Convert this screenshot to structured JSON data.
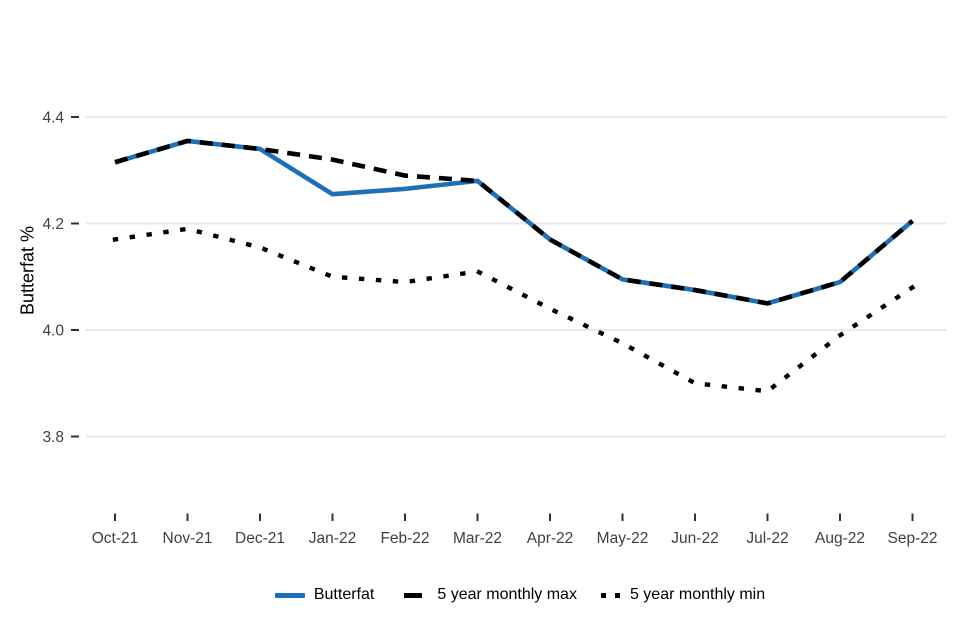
{
  "y_axis": {
    "title": "Butterfat %",
    "tick_labels": [
      "4.4",
      "4.2",
      "4.0",
      "3.8"
    ]
  },
  "x_axis": {
    "tick_labels": [
      "Oct-21",
      "Nov-21",
      "Dec-21",
      "Jan-22",
      "Feb-22",
      "Mar-22",
      "Apr-22",
      "May-22",
      "Jun-22",
      "Jul-22",
      "Aug-22",
      "Sep-22"
    ]
  },
  "legend": {
    "items": [
      {
        "label": "Butterfat",
        "style": "solid",
        "color": "#1d70b8"
      },
      {
        "label": "5 year monthly max",
        "style": "dashed",
        "color": "#000000"
      },
      {
        "label": "5 year monthly min",
        "style": "dotted",
        "color": "#000000"
      }
    ]
  },
  "colors": {
    "butterfat_blue": "#1d70b8",
    "black_line": "#000000",
    "gridline": "#e8e8e8",
    "tick_mark": "#333333",
    "axis_text": "#404040",
    "background": "#ffffff"
  },
  "chart_data": {
    "type": "line",
    "title": "",
    "xlabel": "",
    "ylabel": "Butterfat %",
    "categories": [
      "Oct-21",
      "Nov-21",
      "Dec-21",
      "Jan-22",
      "Feb-22",
      "Mar-22",
      "Apr-22",
      "May-22",
      "Jun-22",
      "Jul-22",
      "Aug-22",
      "Sep-22"
    ],
    "series": [
      {
        "name": "Butterfat",
        "color": "#1d70b8",
        "dash": "solid",
        "values": [
          4.315,
          4.355,
          4.34,
          4.255,
          4.265,
          4.28,
          4.17,
          4.095,
          4.075,
          4.05,
          4.09,
          4.205
        ]
      },
      {
        "name": "5 year monthly max",
        "color": "#000000",
        "dash": "dashed",
        "values": [
          4.315,
          4.355,
          4.34,
          4.32,
          4.29,
          4.28,
          4.17,
          4.095,
          4.075,
          4.05,
          4.09,
          4.205
        ]
      },
      {
        "name": "5 year monthly min",
        "color": "#000000",
        "dash": "dotted",
        "values": [
          4.17,
          4.19,
          4.155,
          4.1,
          4.09,
          4.11,
          4.04,
          3.975,
          3.9,
          3.885,
          3.99,
          4.08
        ]
      }
    ],
    "yticks": [
      4.4,
      4.2,
      4.0,
      3.8
    ],
    "ylim": [
      3.65,
      4.46
    ],
    "grid": "horizontal-only",
    "legend_position": "bottom",
    "notes": "max line overlaps Butterfat line except Jan-22 to Mar-22 where Butterfat dips below"
  }
}
